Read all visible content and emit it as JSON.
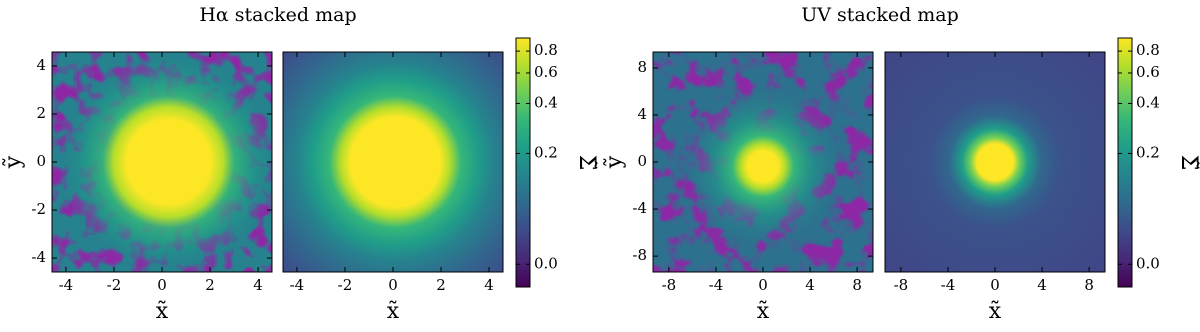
{
  "chart_data": [
    {
      "type": "heatmap",
      "title": "Hα stacked map",
      "colormap": "viridis",
      "panels": [
        {
          "xlim": [
            -4.58,
            4.58
          ],
          "ylim": [
            -4.58,
            4.58
          ],
          "xticks": [
            -4,
            -2,
            0,
            2,
            4
          ],
          "yticks": [
            -4,
            -2,
            0,
            2,
            4
          ],
          "xlabel": "x̃",
          "ylabel": "ỹ",
          "noisy": true
        },
        {
          "xlim": [
            -4.58,
            4.58
          ],
          "ylim": [
            -4.58,
            4.58
          ],
          "xticks": [
            -4,
            -2,
            0,
            2,
            4
          ],
          "xlabel": "x̃",
          "noisy": false
        }
      ],
      "colorbar": {
        "label": "Σ̃",
        "clim": [
          -0.03,
          0.95
        ],
        "scale": "asinh",
        "ticks": [
          {
            "value": 0,
            "label": "0.0"
          },
          0.2,
          0.4,
          0.6,
          0.8
        ]
      }
    },
    {
      "type": "heatmap",
      "title": "UV stacked map",
      "colormap": "viridis",
      "panels": [
        {
          "xlim": [
            -9.35,
            9.35
          ],
          "ylim": [
            -9.35,
            9.35
          ],
          "xticks": [
            -8,
            -4,
            0,
            4,
            8
          ],
          "yticks": [
            -8,
            -4,
            0,
            4,
            8
          ],
          "xlabel": "x̃",
          "ylabel": "ỹ",
          "noisy": true
        },
        {
          "xlim": [
            -9.35,
            9.35
          ],
          "ylim": [
            -9.35,
            9.35
          ],
          "xticks": [
            -8,
            -4,
            0,
            4,
            8
          ],
          "xlabel": "x̃",
          "noisy": false
        }
      ],
      "colorbar": {
        "label": "Σ̃",
        "clim": [
          -0.03,
          0.95
        ],
        "scale": "asinh",
        "ticks": [
          {
            "value": 0,
            "label": "0.0"
          },
          0.2,
          0.4,
          0.6,
          0.8
        ]
      }
    }
  ]
}
